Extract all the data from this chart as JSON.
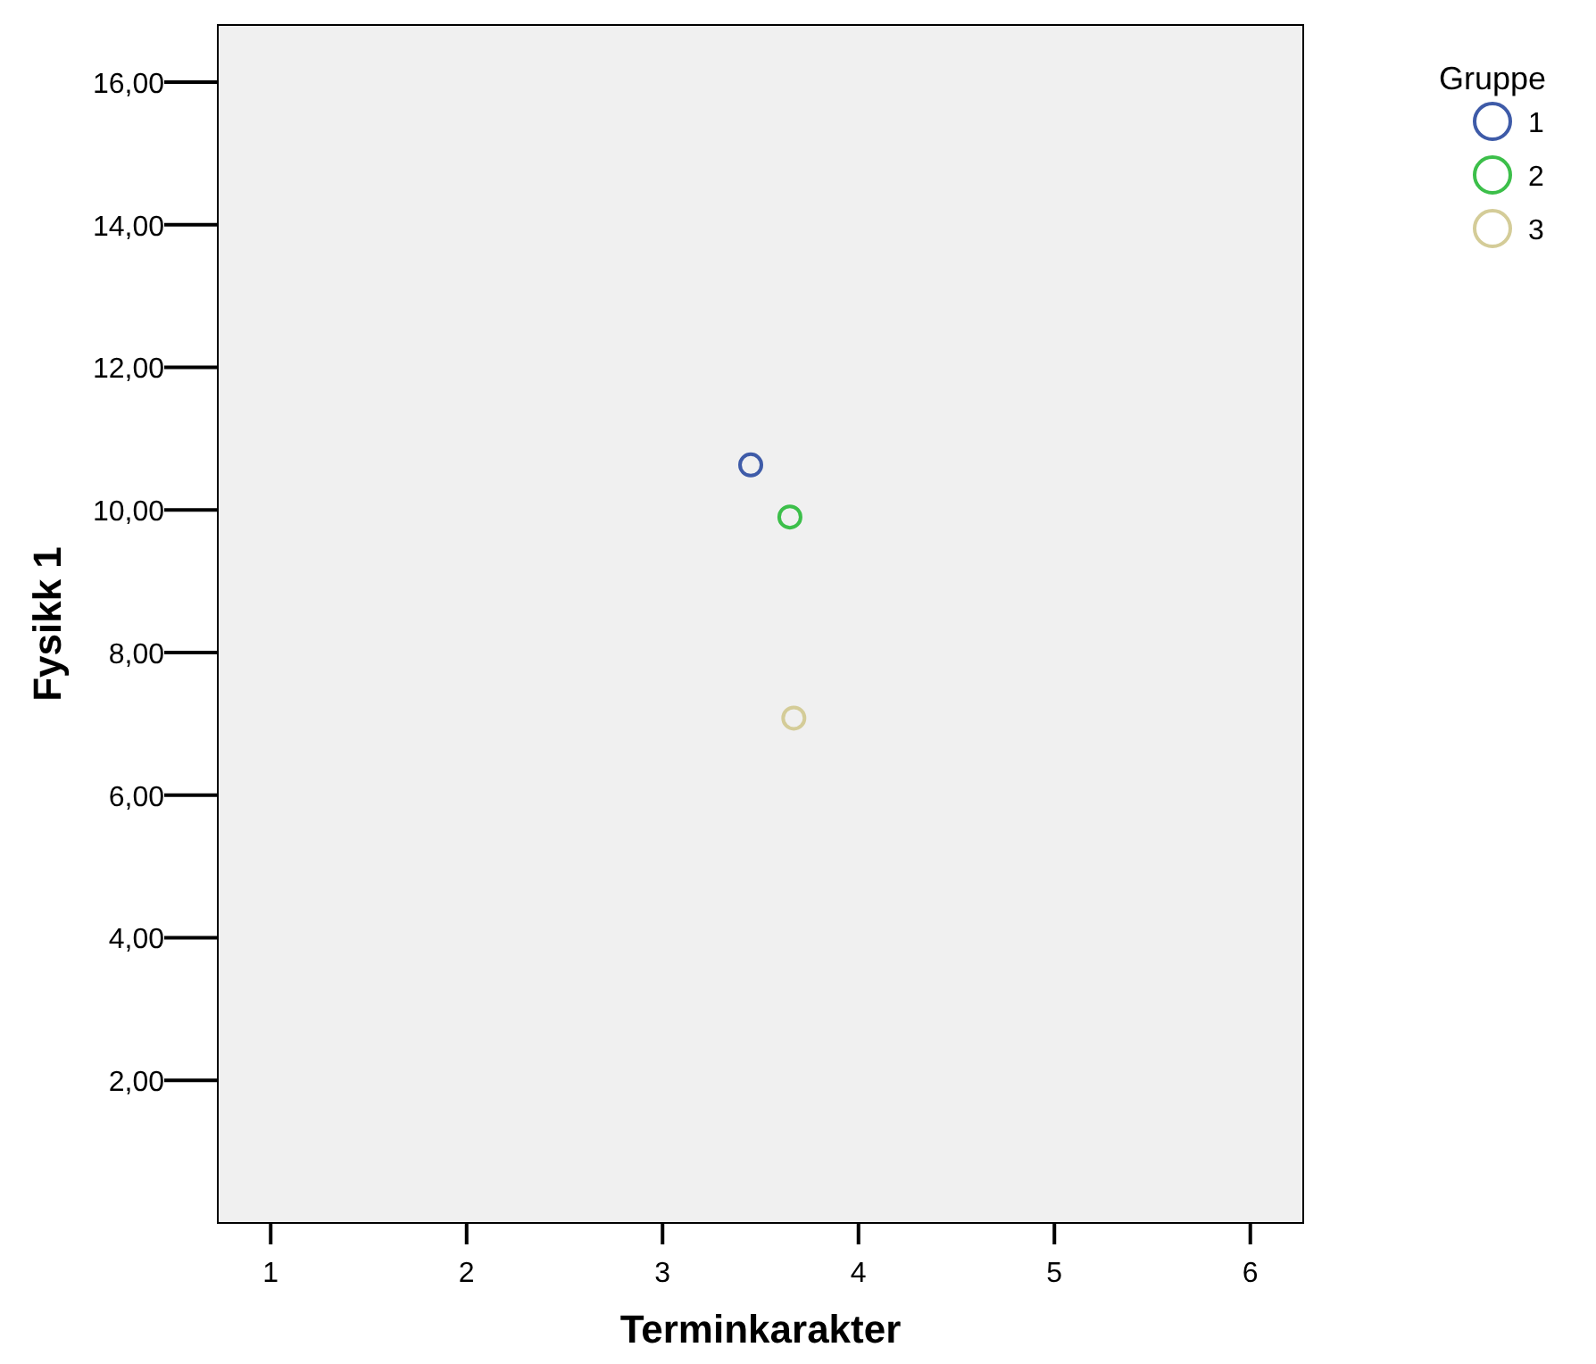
{
  "chart_data": {
    "type": "scatter",
    "xlabel": "Terminkarakter",
    "ylabel": "Fysikk 1",
    "legend_title": "Gruppe",
    "legend": "top right",
    "marker": "circle",
    "grid": false,
    "xlim": [
      0.73,
      6.27
    ],
    "xticks": [
      1,
      2,
      3,
      4,
      5,
      6
    ],
    "ylim": [
      0,
      16.8
    ],
    "yticks": [
      {
        "value": 2,
        "label": "2,00"
      },
      {
        "value": 4,
        "label": "4,00"
      },
      {
        "value": 6,
        "label": "6,00"
      },
      {
        "value": 8,
        "label": "8,00"
      },
      {
        "value": 10,
        "label": "10,00"
      },
      {
        "value": 12,
        "label": "12,00"
      },
      {
        "value": 14,
        "label": "14,00"
      },
      {
        "value": 16,
        "label": "16,00"
      }
    ],
    "series": [
      {
        "name": "1",
        "color": "#3e5ba8",
        "x": [
          3.45
        ],
        "values": [
          10.63
        ]
      },
      {
        "name": "2",
        "color": "#3cbf4a",
        "x": [
          3.65
        ],
        "values": [
          9.9
        ]
      },
      {
        "name": "3",
        "color": "#d4cc98",
        "x": [
          3.67
        ],
        "values": [
          7.08
        ]
      }
    ]
  }
}
